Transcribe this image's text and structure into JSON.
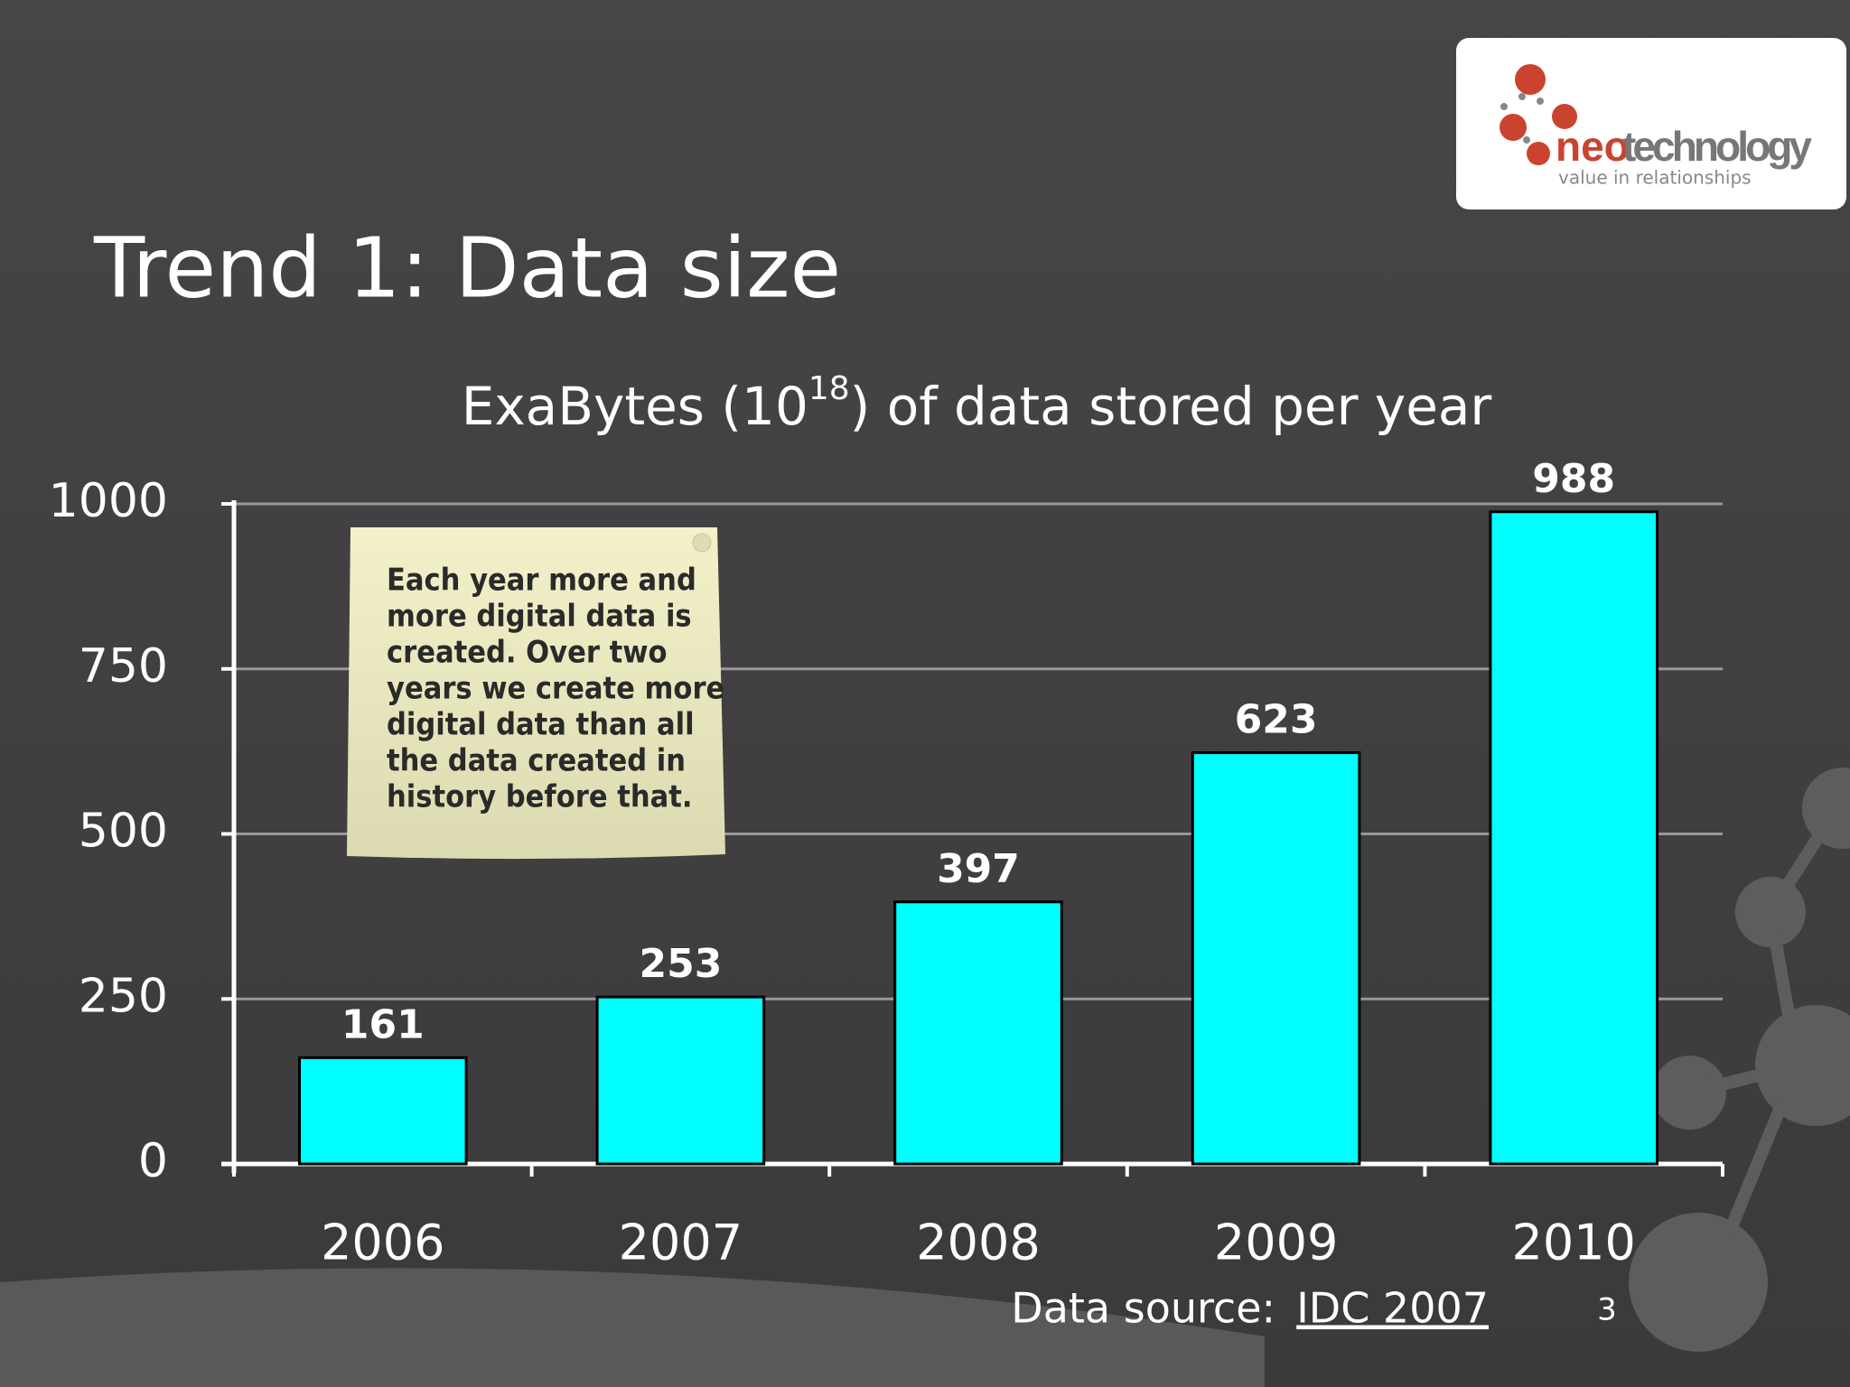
{
  "slide": {
    "heading": "Trend 1: Data size",
    "logo": {
      "brand_first": "neo",
      "brand_second": "technology",
      "tagline": "value in relationships"
    },
    "note": [
      "Each year more and",
      "more digital data is",
      "created. Over two",
      "years we create more",
      "digital data than all",
      "the data created in",
      "history before that."
    ],
    "source_label": "Data source:",
    "source_link": "IDC 2007",
    "page_number": "3"
  },
  "chart_data": {
    "type": "bar",
    "title": {
      "before": "ExaBytes (10",
      "superscript": "18",
      "after": ") of data stored per year"
    },
    "categories": [
      "2006",
      "2007",
      "2008",
      "2009",
      "2010"
    ],
    "values": [
      161,
      253,
      397,
      623,
      988
    ],
    "color": "#00ffff",
    "ylim": [
      0,
      1000
    ],
    "yticks": [
      0,
      250,
      500,
      750,
      1000
    ],
    "grid": true
  }
}
